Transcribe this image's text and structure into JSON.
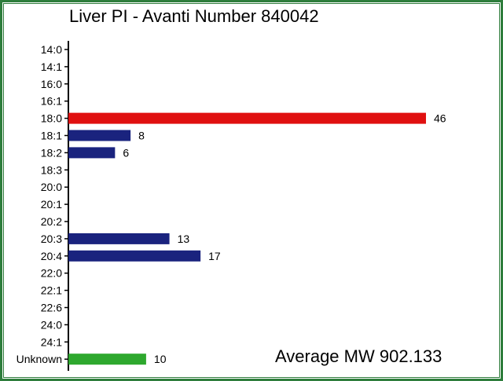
{
  "chart_data": {
    "type": "bar",
    "orientation": "horizontal",
    "title": "Liver PI - Avanti Number 840042",
    "categories": [
      "14:0",
      "14:1",
      "16:0",
      "16:1",
      "18:0",
      "18:1",
      "18:2",
      "18:3",
      "20:0",
      "20:1",
      "20:2",
      "20:3",
      "20:4",
      "22:0",
      "22:1",
      "22:6",
      "24:0",
      "24:1",
      "Unknown"
    ],
    "values": [
      0,
      0,
      0,
      0,
      46,
      8,
      6,
      0,
      0,
      0,
      0,
      13,
      17,
      0,
      0,
      0,
      0,
      0,
      10
    ],
    "data_labels": [
      "",
      "",
      "",
      "",
      "46",
      "8",
      "6",
      "",
      "",
      "",
      "",
      "13",
      "17",
      "",
      "",
      "",
      "",
      "",
      "10"
    ],
    "bar_colors": [
      "#1a237e",
      "#1a237e",
      "#1a237e",
      "#1a237e",
      "#e01010",
      "#1a237e",
      "#1a237e",
      "#1a237e",
      "#1a237e",
      "#1a237e",
      "#1a237e",
      "#1a237e",
      "#1a237e",
      "#1a237e",
      "#1a237e",
      "#1a237e",
      "#1a237e",
      "#1a237e",
      "#2ea82e"
    ],
    "xlim": [
      0,
      50
    ],
    "annotation": "Average MW 902.133",
    "grid": false,
    "legend": "none"
  },
  "colors": {
    "border": "#2e7d3c",
    "highlight": "#e01010",
    "default_bar": "#1a237e",
    "unknown_bar": "#2ea82e"
  }
}
